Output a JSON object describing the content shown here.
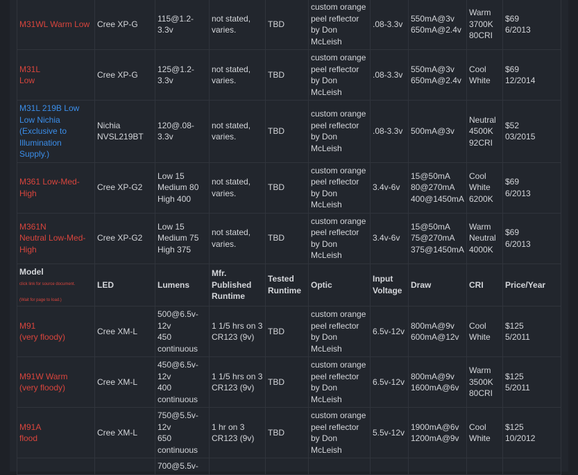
{
  "table": {
    "rows_before": [
      {
        "color": "#d9453d",
        "cells": [
          "M31WL Warm Low",
          "Cree XP-G",
          "115@1.2-3.3v",
          "not stated, varies.",
          "TBD",
          "custom orange peel reflector by Don McLeish",
          ".08-3.3v",
          "550mA@3v\n650mA@2.4v",
          "Warm\n3700K\n80CRI",
          "$69\n6/2013"
        ]
      },
      {
        "color": "#d9453d",
        "cells": [
          "M31L\nLow",
          "Cree XP-G",
          "125@1.2-3.3v",
          "not stated, varies.",
          "TBD",
          "custom orange peel reflector by Don McLeish",
          ".08-3.3v",
          "550mA@3v\n650mA@2.4v",
          "Cool\nWhite",
          "$69\n12/2014"
        ]
      },
      {
        "color": "#3b8eea",
        "cells": [
          "M31L 219B Low\nLow Nichia\n(Exclusive to Illumination Supply.)",
          "Nichia NVSL219BT",
          "120@.08-3.3v",
          "not stated, varies.",
          "TBD",
          "custom orange peel reflector by Don McLeish",
          ".08-3.3v",
          "500mA@3v",
          "Neutral\n4500K\n92CRI",
          "$52\n03/2015"
        ]
      },
      {
        "color": "#d9453d",
        "cells": [
          "M361 Low-Med-High",
          "Cree XP-G2",
          "Low 15\nMedium 80\nHigh 400",
          "not stated, varies.",
          "TBD",
          "custom orange peel reflector by Don McLeish",
          "3.4v-6v",
          "15@50mA\n80@270mA\n400@1450mA",
          "Cool\nWhite\n6200K",
          "$69\n6/2013"
        ]
      },
      {
        "color": "#d9453d",
        "cells": [
          "M361N\nNeutral Low-Med-High",
          "Cree XP-G2",
          "Low 15\nMedium 75\nHigh 375",
          "not stated, varies.",
          "TBD",
          "custom orange peel reflector by Don McLeish",
          "3.4v-6v",
          "15@50mA\n75@270mA\n375@1450mA",
          "Warm\nNeutral\n4000K",
          "$69\n6/2013"
        ]
      }
    ],
    "header": {
      "cells": [
        "Model",
        "LED",
        "Lumens",
        "Mfr. Published Runtime",
        "Tested Runtime",
        "Optic",
        "Input Voltage",
        "Draw",
        "CRI",
        "Price/Year"
      ],
      "notes": [
        "click link for source document.",
        "(Wait for page to load.)"
      ],
      "note_color": "#d9453d"
    },
    "rows_after": [
      {
        "color": "#d9453d",
        "cells": [
          "M91\n(very floody)",
          "Cree XM-L",
          "500@6.5v-12v\n450 continuous",
          "1 1/5 hrs on 3 CR123 (9v)",
          "TBD",
          "custom orange peel reflector by Don McLeish",
          "6.5v-12v",
          "800mA@9v\n600mA@12v",
          "Cool\nWhite",
          "$125\n5/2011"
        ]
      },
      {
        "color": "#d9453d",
        "cells": [
          "M91W Warm\n(very floody)",
          "Cree XM-L",
          "450@6.5v-12v\n400 continuous",
          "1 1/5 hrs on 3 CR123 (9v)",
          "TBD",
          "custom orange peel reflector by Don McLeish",
          "6.5v-12v",
          "800mA@9v\n1600mA@6v",
          "Warm\n3500K\n80CRI",
          "$125\n5/2011"
        ]
      },
      {
        "color": "#d9453d",
        "cells": [
          "M91A\nflood",
          "Cree XM-L",
          "750@5.5v-12v\n650 continuous",
          "1 hr on 3 CR123 (9v)",
          "TBD",
          "custom orange peel reflector by Don McLeish",
          "5.5v-12v",
          "1900mA@6v\n1200mA@9v",
          "Cool\nWhite",
          "$125\n10/2012"
        ]
      },
      {
        "color": "#d9453d",
        "cells": [
          "",
          "",
          "700@5.5v-",
          "",
          "",
          "",
          "",
          "",
          "",
          ""
        ]
      }
    ]
  }
}
